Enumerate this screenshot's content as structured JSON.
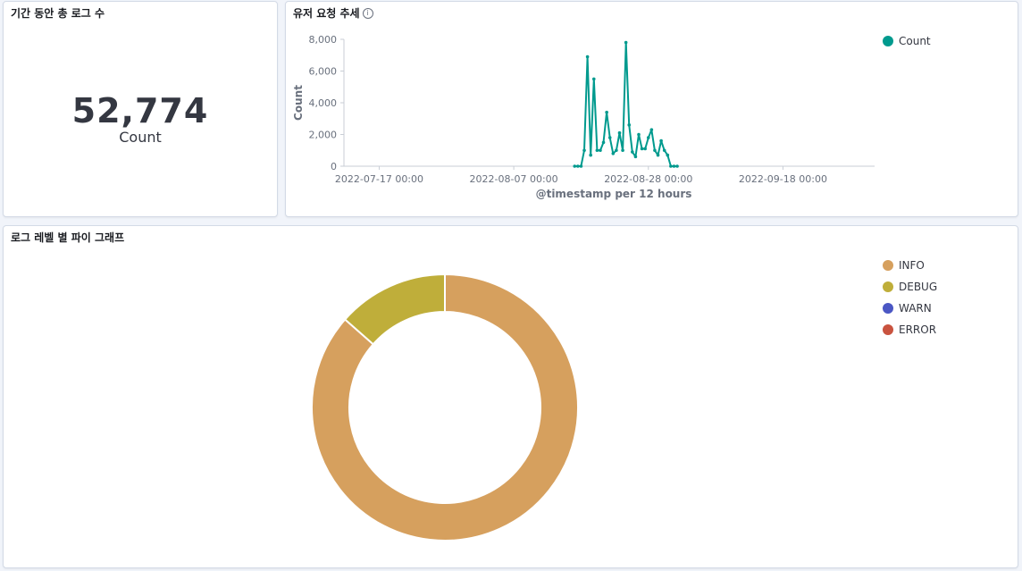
{
  "metric_panel": {
    "title": "기간 동안 총 로그 수",
    "value": "52,774",
    "label": "Count"
  },
  "line_panel": {
    "title": "유저 요청 추세",
    "info_icon": "info-icon",
    "legend": [
      {
        "label": "Count",
        "color": "#009a8e"
      }
    ]
  },
  "pie_panel": {
    "title": "로그 레벨 별 파이 그래프",
    "legend": [
      {
        "label": "INFO",
        "color": "#d6a05e"
      },
      {
        "label": "DEBUG",
        "color": "#bfae3a"
      },
      {
        "label": "WARN",
        "color": "#4b57c4"
      },
      {
        "label": "ERROR",
        "color": "#c9533f"
      }
    ]
  },
  "chart_data": [
    {
      "type": "line",
      "xlabel": "@timestamp per 12 hours",
      "ylabel": "Count",
      "ylim": [
        0,
        8000
      ],
      "yticks": [
        0,
        2000,
        4000,
        6000,
        8000
      ],
      "ytick_labels": [
        "0",
        "2,000",
        "4,000",
        "6,000",
        "8,000"
      ],
      "xtick_labels": [
        "2022-07-17 00:00",
        "2022-08-07 00:00",
        "2022-08-28 00:00",
        "2022-09-18 00:00"
      ],
      "x_range_days": [
        -5.5,
        77.3
      ],
      "xticks_days": [
        0,
        21,
        42,
        63
      ],
      "grid": false,
      "legend_position": "top-right",
      "series": [
        {
          "name": "Count",
          "color": "#009a8e",
          "x": [
            30.5,
            31,
            31.5,
            32,
            32.5,
            33,
            33.5,
            34,
            34.5,
            35,
            35.5,
            36,
            36.5,
            37,
            37.5,
            38,
            38.5,
            39,
            39.5,
            40,
            40.5,
            41,
            41.5,
            42,
            42.5,
            43,
            43.5,
            44,
            44.5,
            45,
            45.5,
            46,
            46.5
          ],
          "y": [
            0,
            0,
            0,
            1000,
            6900,
            700,
            5500,
            1000,
            1000,
            1500,
            3400,
            1800,
            800,
            1000,
            2100,
            1000,
            7800,
            2600,
            900,
            600,
            2000,
            1100,
            1100,
            1800,
            2300,
            1000,
            700,
            1600,
            1000,
            700,
            0,
            0,
            0
          ]
        }
      ]
    },
    {
      "type": "pie",
      "donut": true,
      "slices": [
        {
          "label": "INFO",
          "value": 86.5,
          "color": "#d6a05e"
        },
        {
          "label": "DEBUG",
          "value": 13.5,
          "color": "#bfae3a"
        },
        {
          "label": "WARN",
          "value": 0,
          "color": "#4b57c4"
        },
        {
          "label": "ERROR",
          "value": 0,
          "color": "#c9533f"
        }
      ]
    }
  ]
}
